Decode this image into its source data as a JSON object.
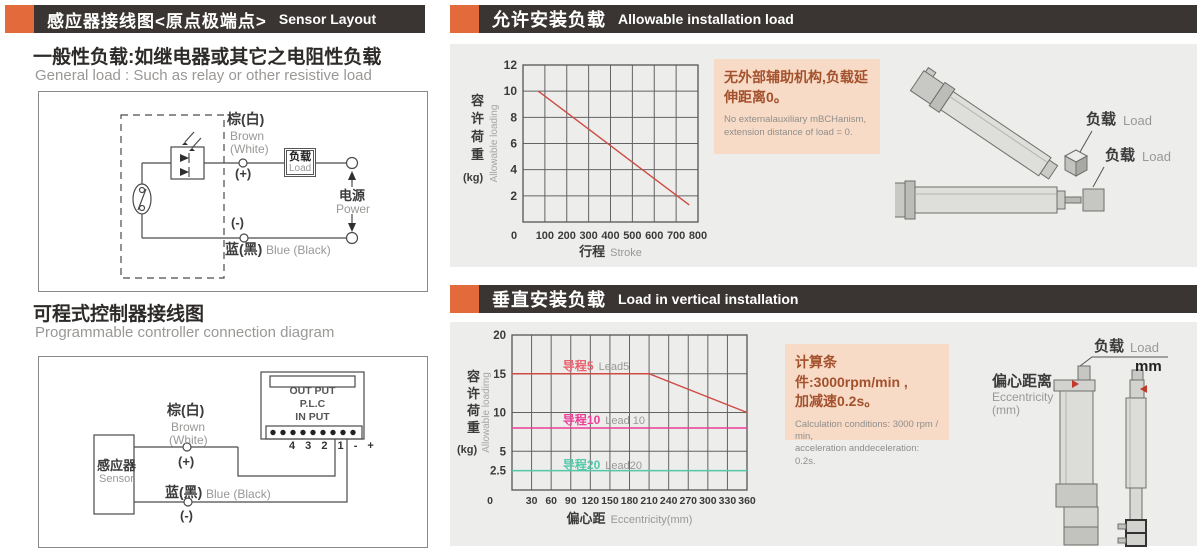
{
  "colors": {
    "accent": "#e26a3b",
    "header_bg": "#3a3532",
    "panel_bg": "#ededec",
    "peach_bg": "#f7dbc6",
    "peach_text": "#a4512e"
  },
  "left": {
    "header": {
      "zh": "感应器接线图<原点极端点>",
      "en": "Sensor Layout"
    },
    "general": {
      "zh": "一般性负载:如继电器或其它之电阻性负载",
      "en": "General load : Such as relay or other resistive load"
    },
    "circuit1": {
      "brown_zh": "棕(白)",
      "brown_en1": "Brown",
      "brown_en2": "(White)",
      "plus": "(+)",
      "load_zh": "负载",
      "load_en": "Load",
      "power_zh": "电源",
      "power_en": "Power",
      "minus": "(-)",
      "blue_zh": "蓝(黑)",
      "blue_en": "Blue (Black)"
    },
    "plc_title": {
      "zh": "可程式控制器接线图",
      "en": "Programmable controller connection diagram"
    },
    "circuit2": {
      "brown_zh": "棕(白)",
      "brown_en1": "Brown",
      "brown_en2": "(White)",
      "plus": "(+)",
      "blue_zh": "蓝(黑)",
      "blue_en": "Blue (Black)",
      "minus": "(-)",
      "sensor_zh": "感应器",
      "sensor_en": "Sensor",
      "plc1": "OUT PUT",
      "plc2": "P.L.C",
      "plc3": "IN PUT",
      "terminals": "4 3 2 1 - +"
    }
  },
  "top_right": {
    "header": {
      "zh": "允许安装负载",
      "en": "Allowable installation load"
    },
    "note": {
      "zh": "无外部辅助机构,负载延伸距离0。",
      "en1": "No externalauxiliary mBCHanism,",
      "en2": "extension distance of load = 0."
    },
    "load1_zh": "负载",
    "load1_en": "Load",
    "load2_zh": "负载",
    "load2_en": "Load"
  },
  "bottom_right": {
    "header": {
      "zh": "垂直安装负载",
      "en": "Load in vertical installation"
    },
    "note": {
      "zh1": "计算条件:3000rpm/min ,",
      "zh2": "加减速0.2s。",
      "en1": "Calculation conditions: 3000 rpm / min,",
      "en2": "acceleration anddeceleration: 0.2s."
    },
    "load_zh": "负载",
    "load_en": "Load",
    "mm": "mm",
    "ecc_zh": "偏心距离",
    "ecc_en1": "Eccentricity",
    "ecc_en2": "(mm)"
  },
  "chart_data": [
    {
      "type": "line",
      "xlabel_zh": "行程",
      "xlabel_en": "Stroke",
      "ylabel_zh": "容许荷重",
      "ylabel_unit": "(kg)",
      "ylabel_en": "Allowable loading",
      "xlim": [
        0,
        800
      ],
      "ylim": [
        0,
        12
      ],
      "xticks": [
        0,
        100,
        200,
        300,
        400,
        500,
        600,
        700,
        800
      ],
      "yticks": [
        2,
        4,
        6,
        8,
        10,
        12
      ],
      "grid": true,
      "legend": "none",
      "series": [
        {
          "name": "allowable-load",
          "color": "#cf4a42",
          "points": [
            [
              70,
              10
            ],
            [
              760,
              1.3
            ]
          ]
        }
      ]
    },
    {
      "type": "line",
      "xlabel_zh": "偏心距",
      "xlabel_en": "Eccentricity(mm)",
      "ylabel_zh": "容许荷重",
      "ylabel_unit": "(kg)",
      "ylabel_en": "Allowable loadimg",
      "xlim": [
        0,
        360
      ],
      "ylim": [
        0,
        20
      ],
      "xticks": [
        0,
        30,
        60,
        90,
        120,
        150,
        180,
        210,
        240,
        270,
        300,
        330,
        360
      ],
      "yticks": [
        2.5,
        5,
        10,
        15,
        20
      ],
      "grid": true,
      "legend": "inline",
      "series": [
        {
          "name_zh": "导程5",
          "name_en": "Lead5",
          "color": "#cf4a42",
          "label_color": "#e9606e",
          "points": [
            [
              0,
              15
            ],
            [
              210,
              15
            ],
            [
              360,
              10
            ]
          ],
          "label_x": 78,
          "label_y": 15.9
        },
        {
          "name_zh": "导程10",
          "name_en": "Lead 10",
          "color": "#ee3d96",
          "label_color": "#ee3d96",
          "points": [
            [
              0,
              8
            ],
            [
              360,
              8
            ]
          ],
          "label_x": 78,
          "label_y": 8.9
        },
        {
          "name_zh": "导程20",
          "name_en": "Lead20",
          "color": "#54c8a8",
          "label_color": "#54c8a8",
          "points": [
            [
              0,
              2.5
            ],
            [
              360,
              2.5
            ]
          ],
          "label_x": 78,
          "label_y": 3.1
        }
      ]
    }
  ]
}
